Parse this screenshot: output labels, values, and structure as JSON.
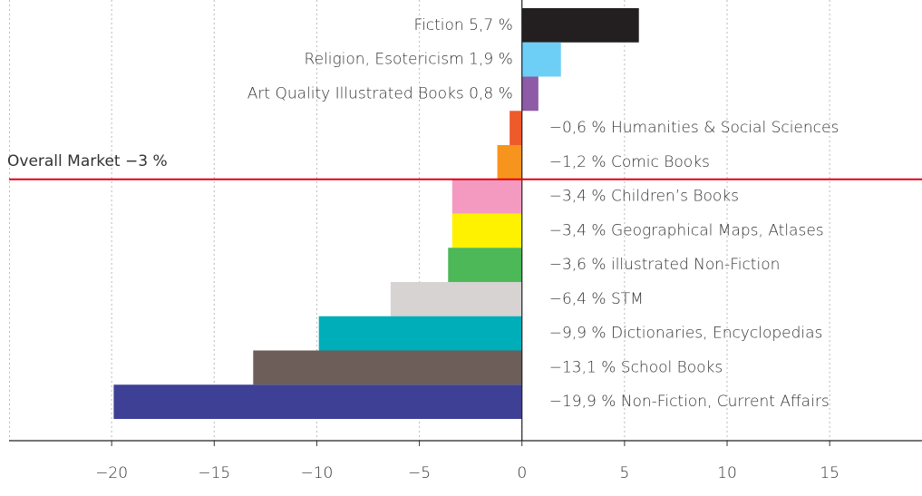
{
  "chart_data": {
    "type": "barh",
    "categories": [
      "Fiction",
      "Religion, Esotericism",
      "Art Quality Illustrated Books",
      "Humanities & Social Sciences",
      "Comic Books",
      "Children’s Books",
      "Geographical Maps, Atlases",
      "illustrated Non-Fiction",
      "STM",
      "Dictionaries, Encyclopedias",
      "School Books",
      "Non-Fiction, Current Affairs"
    ],
    "values": [
      5.7,
      1.9,
      0.8,
      -0.6,
      -1.2,
      -3.4,
      -3.4,
      -3.6,
      -6.4,
      -9.9,
      -13.1,
      -19.9
    ],
    "value_labels": [
      "5,7 %",
      "1,9 %",
      "0,8 %",
      "−0,6 %",
      "−1,2 %",
      "−3,4 %",
      "−3,4 %",
      "−3,6 %",
      "−6,4 %",
      "−9,9 %",
      "−13,1 %",
      "−19,9 %"
    ],
    "colors": [
      "#231f20",
      "#6dcff6",
      "#8e5ba6",
      "#ef5a2a",
      "#f7941d",
      "#f49ac1",
      "#fff200",
      "#4cb858",
      "#d7d3d2",
      "#00aeba",
      "#6d5e5a",
      "#3d4095"
    ],
    "reference": {
      "label": "Overall Market",
      "value": -3,
      "value_label": "−3 %",
      "color": "#e2001a"
    },
    "xlim": [
      -25,
      19.5
    ],
    "xticks": [
      {
        "value": -20,
        "label": "−20"
      },
      {
        "value": -15,
        "label": "−15"
      },
      {
        "value": -10,
        "label": "−10"
      },
      {
        "value": -5,
        "label": "−5"
      },
      0,
      5,
      10,
      15
    ],
    "grid": true
  }
}
